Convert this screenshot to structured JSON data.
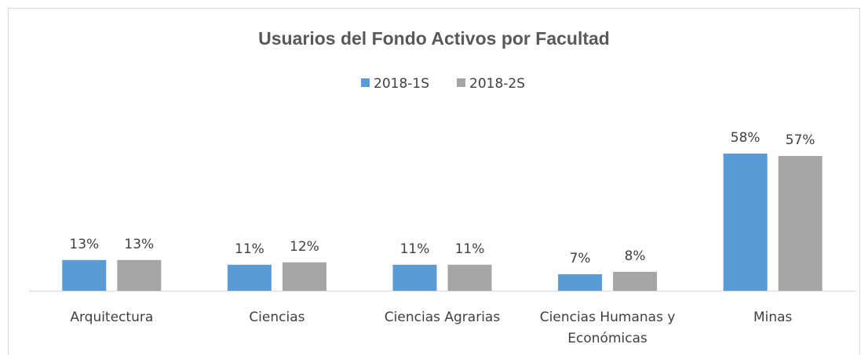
{
  "chart_data": {
    "type": "bar",
    "title": "Usuarios del Fondo Activos por Facultad",
    "categories": [
      "Arquitectura",
      "Ciencias",
      "Ciencias Agrarias",
      "Ciencias Humanas y Económicas",
      "Minas"
    ],
    "series": [
      {
        "name": "2018-1S",
        "color": "#5B9BD5",
        "values": [
          13,
          11,
          11,
          7,
          58
        ],
        "value_labels": [
          "13%",
          "11%",
          "11%",
          "7%",
          "58%"
        ]
      },
      {
        "name": "2018-2S",
        "color": "#A5A5A5",
        "values": [
          13,
          12,
          11,
          8,
          57
        ],
        "value_labels": [
          "13%",
          "12%",
          "11%",
          "8%",
          "57%"
        ]
      }
    ],
    "legend": "top"
  }
}
